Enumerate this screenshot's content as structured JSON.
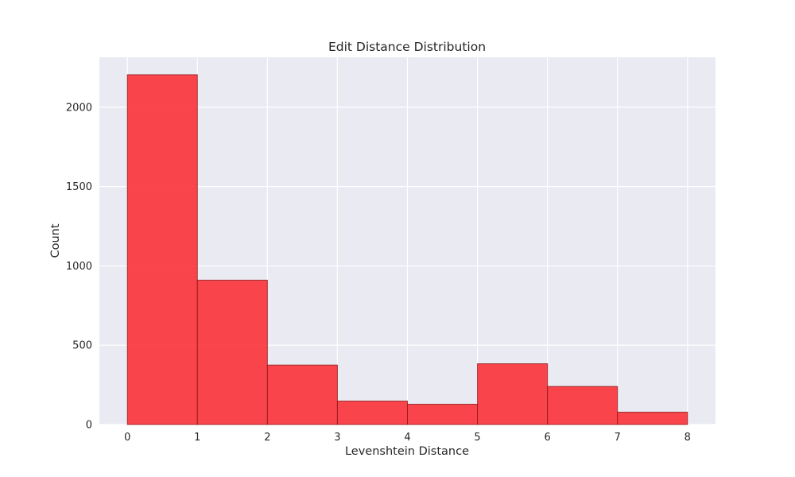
{
  "chart_data": {
    "type": "bar",
    "title": "Edit Distance Distribution",
    "xlabel": "Levenshtein Distance",
    "ylabel": "Count",
    "bin_edges": [
      0,
      1,
      2,
      3,
      4,
      5,
      6,
      7,
      8
    ],
    "values": [
      2205,
      910,
      375,
      148,
      128,
      383,
      240,
      78
    ],
    "xlim": [
      -0.4,
      8.4
    ],
    "ylim": [
      0,
      2315
    ],
    "xticks": [
      "0",
      "1",
      "2",
      "3",
      "4",
      "5",
      "6",
      "7",
      "8"
    ],
    "yticks": [
      "0",
      "500",
      "1000",
      "1500",
      "2000"
    ],
    "ytick_values": [
      0,
      500,
      1000,
      1500,
      2000
    ],
    "bar_color": "#fa272d",
    "bar_edge_color": "#8b1a1a",
    "background_color": "#eaeaf2",
    "grid": true,
    "grid_color": "#ffffff"
  }
}
